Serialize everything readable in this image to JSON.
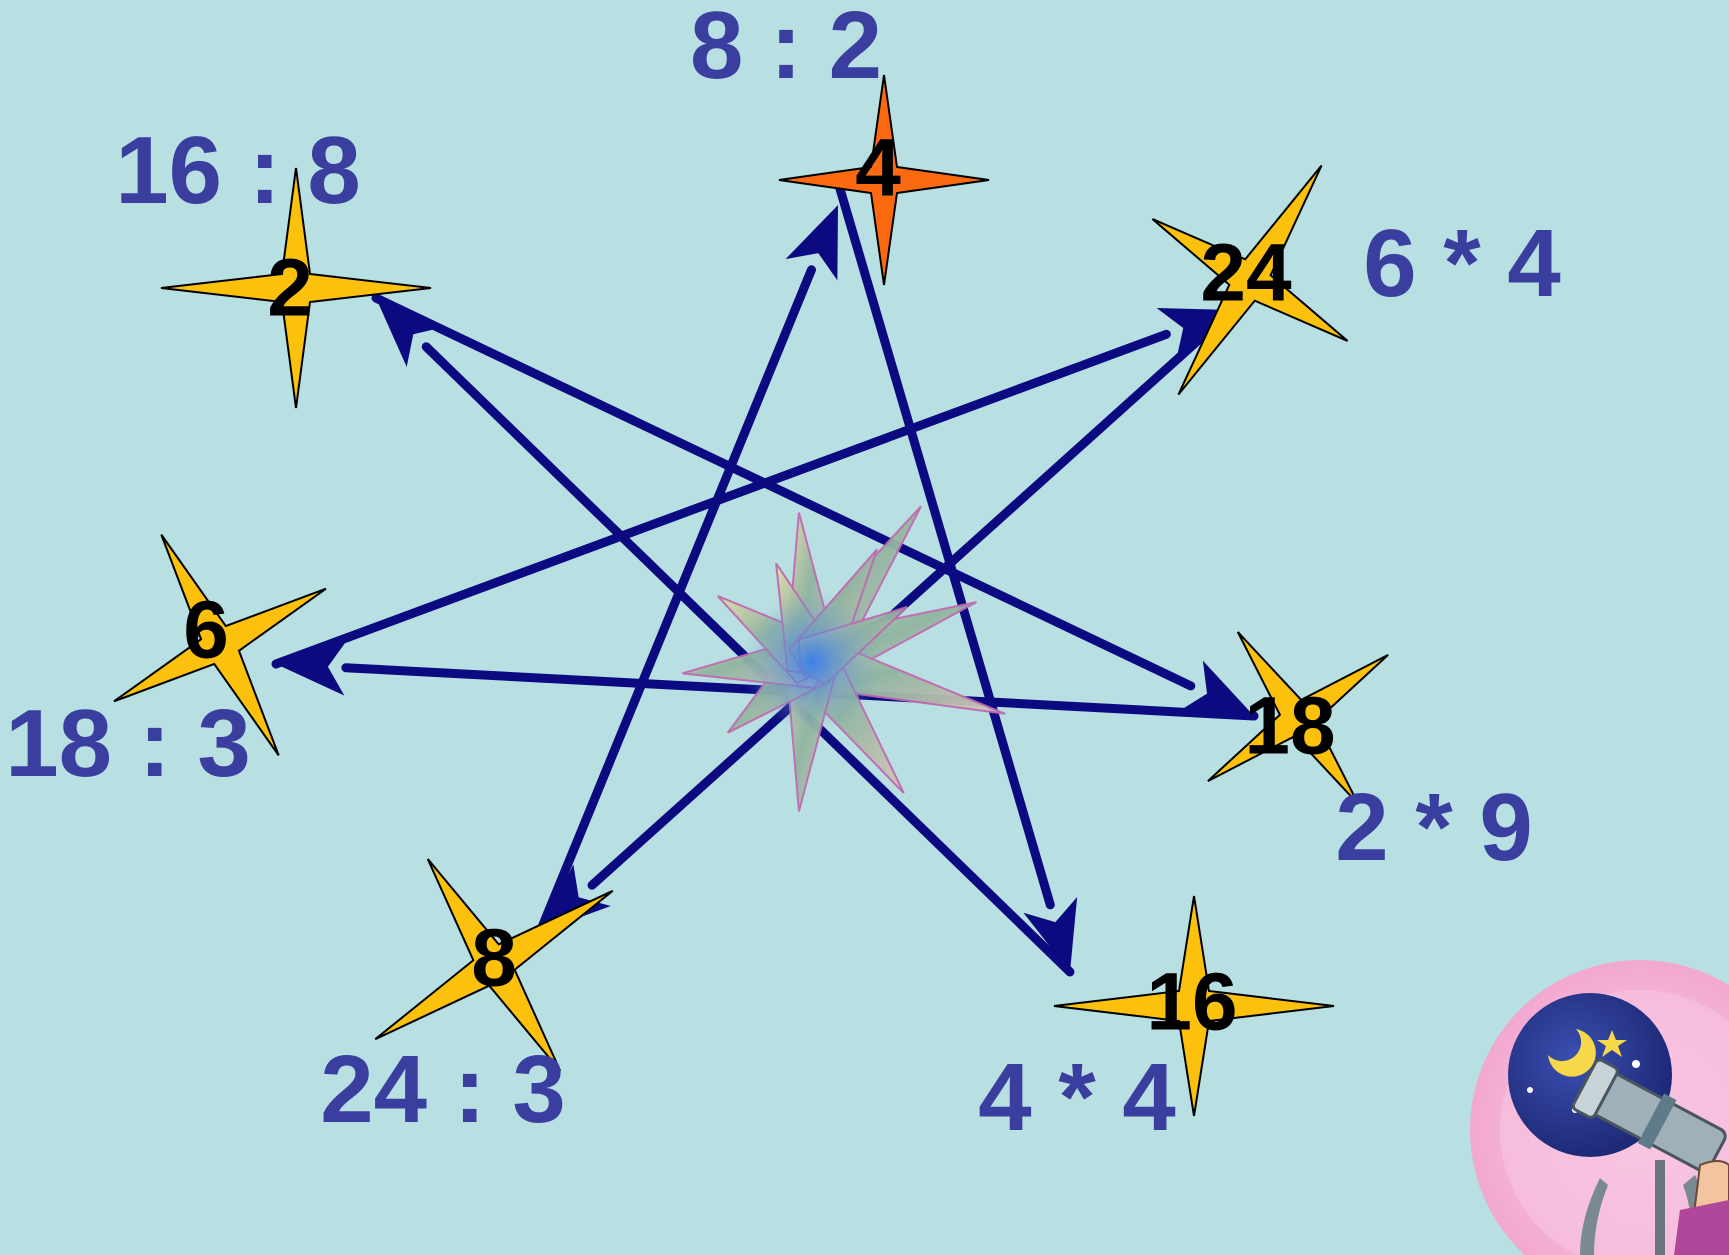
{
  "colors": {
    "background": "#b8dfe2",
    "arrow": "#0b0a80",
    "expression_text": "#3a3e9e",
    "star_yellow": "#fcc10c",
    "star_orange": "#fb6a10"
  },
  "stars": [
    {
      "id": "star-4",
      "value": "4",
      "expression": "8 : 2",
      "color": "#fb6a10"
    },
    {
      "id": "star-2",
      "value": "2",
      "expression": "16 : 8",
      "color": "#fcc10c"
    },
    {
      "id": "star-24",
      "value": "24",
      "expression": "6 * 4",
      "color": "#fcc10c"
    },
    {
      "id": "star-6",
      "value": "6",
      "expression": "18 : 3",
      "color": "#fcc10c"
    },
    {
      "id": "star-18",
      "value": "18",
      "expression": "2 * 9",
      "color": "#fcc10c"
    },
    {
      "id": "star-8",
      "value": "8",
      "expression": "24 : 3",
      "color": "#fcc10c"
    },
    {
      "id": "star-16",
      "value": "16",
      "expression": "4 * 4",
      "color": "#fcc10c"
    }
  ],
  "path_order": [
    "4",
    "16",
    "2",
    "18",
    "6",
    "24",
    "8",
    "4"
  ],
  "icons": {
    "center": "sparkling-star-icon",
    "corner": "telescope-icon"
  }
}
